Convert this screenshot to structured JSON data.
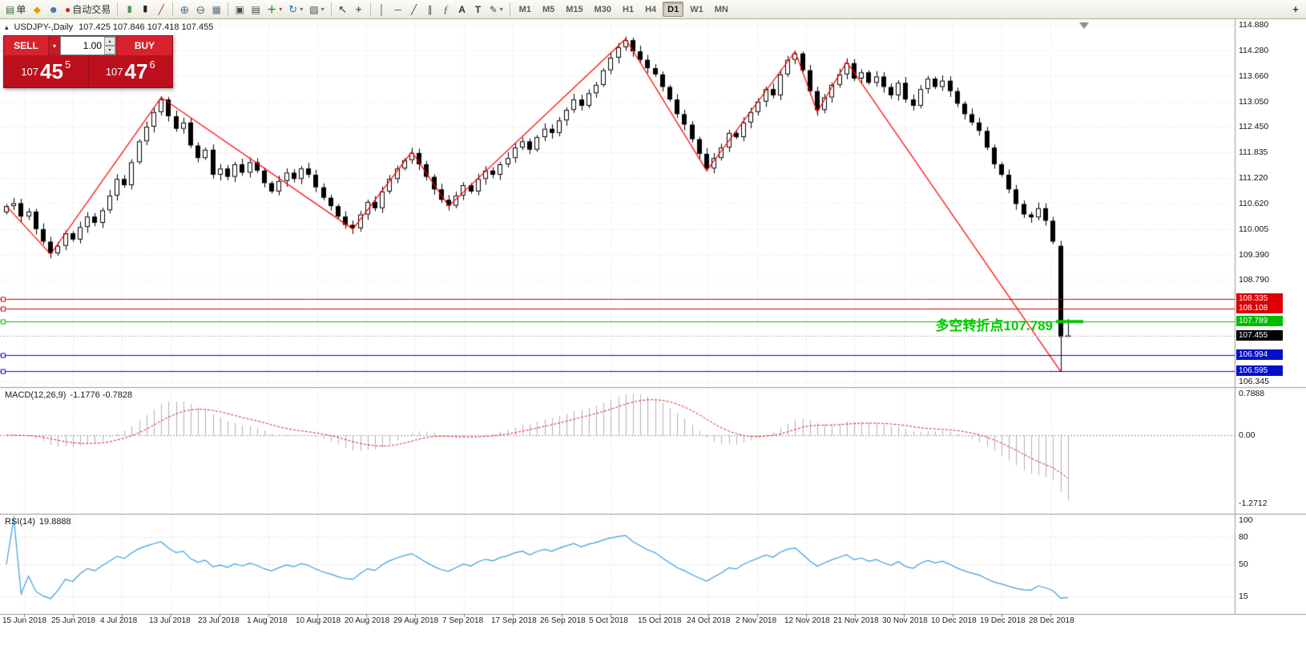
{
  "icons": {
    "order": "▤",
    "market_watch": "◆",
    "navigator": "☻",
    "autotrading_dot": "●",
    "bar_chart": "|||",
    "candle_chart": "▮",
    "line_chart": "╱",
    "zoom_in": "⊕",
    "zoom_out": "⊖",
    "tile_windows": "▦",
    "window_cascade": "▣",
    "window_arrange": "▤",
    "new_chart": "＋",
    "refresh": "↻",
    "profiles": "▧",
    "cursor": "↖",
    "crosshair": "+",
    "vertical_line": "│",
    "horizontal_line": "─",
    "trendline": "╱",
    "channel": "∥",
    "fibonacci": "ƒ",
    "text": "A",
    "text_label": "T",
    "arrows": "✎",
    "dropdown": "▾",
    "collapse": "▴",
    "spin_up": "▴",
    "spin_down": "▾",
    "overflow": "+"
  },
  "toolbar": {
    "groups": [
      {
        "items": [
          {
            "name": "new-order",
            "icon": "order",
            "label": "单",
            "color": "#3f6f3f"
          },
          {
            "name": "market-watch",
            "icon": "market_watch",
            "color": "#d9a400"
          },
          {
            "name": "navigator",
            "icon": "navigator",
            "color": "#3a6ea5"
          },
          {
            "name": "autotrading",
            "icon": "autotrading_dot",
            "label": "自动交易",
            "color": "#d42020"
          }
        ]
      },
      {
        "items": [
          {
            "name": "bar-chart",
            "icon": "bar_chart"
          },
          {
            "name": "candlestick-chart",
            "icon": "candle_chart"
          },
          {
            "name": "line-chart",
            "icon": "line_chart"
          }
        ]
      },
      {
        "items": [
          {
            "name": "zoom-in",
            "icon": "zoom_in"
          },
          {
            "name": "zoom-out",
            "icon": "zoom_out"
          },
          {
            "name": "tile-windows",
            "icon": "tile_windows"
          }
        ]
      },
      {
        "items": [
          {
            "name": "cascade-windows",
            "icon": "window_cascade"
          },
          {
            "name": "arrange-windows",
            "icon": "window_arrange"
          },
          {
            "name": "new-chart",
            "icon": "new_chart",
            "color": "#1a9a1a",
            "dropdown": true
          },
          {
            "name": "refresh-chart",
            "icon": "refresh",
            "color": "#2a6fc0",
            "dropdown": true
          },
          {
            "name": "profiles",
            "icon": "profiles",
            "dropdown": true
          }
        ]
      },
      {
        "items": [
          {
            "name": "cursor",
            "icon": "cursor"
          },
          {
            "name": "crosshair",
            "icon": "crosshair"
          }
        ]
      },
      {
        "items": [
          {
            "name": "vertical-line",
            "icon": "vertical_line"
          },
          {
            "name": "horizontal-line",
            "icon": "horizontal_line"
          },
          {
            "name": "trendline",
            "icon": "trendline"
          },
          {
            "name": "equidistant-channel",
            "icon": "channel"
          },
          {
            "name": "fibonacci",
            "icon": "fibonacci"
          },
          {
            "name": "text",
            "icon": "text"
          },
          {
            "name": "text-label",
            "icon": "text_label"
          },
          {
            "name": "arrows",
            "icon": "arrows",
            "dropdown": true
          }
        ]
      },
      {
        "items": "timeframes"
      }
    ],
    "timeframes": [
      "M1",
      "M5",
      "M15",
      "M30",
      "H1",
      "H4",
      "D1",
      "W1",
      "MN"
    ],
    "active_timeframe": "D1"
  },
  "symbol_header": {
    "title": "USDJPY-,Daily",
    "ohlc": "107.425 107.846 107.418 107.455"
  },
  "trade_panel": {
    "sell_label": "SELL",
    "buy_label": "BUY",
    "volume": "1.00",
    "sell_price": {
      "prefix": "107",
      "main": "45",
      "sup": "5"
    },
    "buy_price": {
      "prefix": "107",
      "main": "47",
      "sup": "6"
    }
  },
  "annotation": {
    "text": "多空转折点107.789",
    "value": 107.789
  },
  "levels": [
    {
      "label": "108.335",
      "value": 108.335,
      "color": "#dd0000",
      "type": "line"
    },
    {
      "label": "108.108",
      "value": 108.108,
      "color": "#dd0000",
      "type": "line"
    },
    {
      "label": "107.789",
      "value": 107.789,
      "color": "#00bb00",
      "type": "line"
    },
    {
      "label": "107.455",
      "value": 107.455,
      "color": "#000000",
      "type": "bid"
    },
    {
      "label": "106.994",
      "value": 106.994,
      "color": "#0010c8",
      "type": "line"
    },
    {
      "label": "106.595",
      "value": 106.595,
      "color": "#0010c8",
      "type": "line"
    }
  ],
  "price_axis": [
    "114.880",
    "114.280",
    "113.660",
    "113.050",
    "112.450",
    "111.835",
    "111.220",
    "110.620",
    "110.005",
    "109.390",
    "108.790",
    "106.345"
  ],
  "macd": {
    "label": "MACD(12,26,9)",
    "values": "-1.1776 -0.7828",
    "axis_labels": [
      "0.7888",
      "0.00",
      "-1.2712"
    ]
  },
  "rsi": {
    "label": "RSI(14)",
    "value": "19.8888",
    "axis_labels": [
      "100",
      "80",
      "50",
      "15"
    ]
  },
  "date_axis": [
    "15 Jun 2018",
    "25 Jun 2018",
    "4 Jul 2018",
    "13 Jul 2018",
    "23 Jul 2018",
    "1 Aug 2018",
    "10 Aug 2018",
    "20 Aug 2018",
    "29 Aug 2018",
    "7 Sep 2018",
    "17 Sep 2018",
    "26 Sep 2018",
    "5 Oct 2018",
    "15 Oct 2018",
    "24 Oct 2018",
    "2 Nov 2018",
    "12 Nov 2018",
    "21 Nov 2018",
    "30 Nov 2018",
    "10 Dec 2018",
    "19 Dec 2018",
    "28 Dec 2018"
  ],
  "chart_data": {
    "type": "candlestick",
    "symbol": "USDJPY",
    "timeframe": "Daily",
    "current_bar": {
      "open": 107.425,
      "high": 107.846,
      "low": 107.418,
      "close": 107.455
    },
    "price_range_visible": [
      106.22,
      115.02
    ],
    "first_open": 110.4,
    "closes": [
      110.55,
      110.62,
      110.3,
      110.42,
      110.0,
      109.7,
      109.42,
      109.6,
      109.9,
      109.75,
      110.05,
      110.3,
      110.15,
      110.45,
      110.8,
      111.2,
      111.05,
      111.6,
      112.1,
      112.45,
      112.8,
      113.1,
      112.7,
      112.4,
      112.55,
      112.0,
      111.7,
      111.9,
      111.3,
      111.45,
      111.25,
      111.55,
      111.35,
      111.6,
      111.4,
      111.1,
      110.9,
      111.15,
      111.35,
      111.2,
      111.45,
      111.3,
      111.0,
      110.75,
      110.55,
      110.3,
      110.1,
      110.02,
      110.35,
      110.65,
      110.5,
      110.9,
      111.2,
      111.45,
      111.65,
      111.82,
      111.55,
      111.25,
      110.95,
      110.7,
      110.56,
      110.8,
      111.05,
      110.9,
      111.2,
      111.4,
      111.3,
      111.55,
      111.7,
      111.95,
      112.1,
      111.9,
      112.2,
      112.4,
      112.3,
      112.6,
      112.85,
      113.1,
      112.95,
      113.25,
      113.45,
      113.8,
      114.1,
      114.35,
      114.52,
      114.25,
      114.05,
      113.85,
      113.7,
      113.4,
      113.1,
      112.75,
      112.5,
      112.15,
      111.8,
      111.45,
      111.7,
      111.95,
      112.3,
      112.2,
      112.55,
      112.8,
      113.05,
      113.35,
      113.2,
      113.7,
      114.05,
      114.2,
      113.8,
      113.3,
      112.85,
      113.15,
      113.45,
      113.7,
      113.97,
      113.6,
      113.75,
      113.5,
      113.65,
      113.4,
      113.2,
      113.5,
      113.1,
      112.95,
      113.35,
      113.6,
      113.4,
      113.55,
      113.3,
      113.0,
      112.75,
      112.55,
      112.35,
      111.95,
      111.55,
      111.3,
      110.95,
      110.6,
      110.35,
      110.28,
      110.5,
      110.2,
      109.7,
      107.42,
      107.455
    ],
    "special_bars": {
      "143": [
        109.6,
        109.72,
        106.6,
        107.42
      ],
      "144": [
        107.425,
        107.846,
        107.418,
        107.455
      ]
    },
    "zigzag_pivots": [
      [
        0,
        110.55
      ],
      [
        6,
        109.4
      ],
      [
        21,
        113.15
      ],
      [
        47,
        110.0
      ],
      [
        55,
        111.85
      ],
      [
        60,
        110.55
      ],
      [
        84,
        114.55
      ],
      [
        95,
        111.4
      ],
      [
        107,
        114.25
      ],
      [
        110,
        112.8
      ],
      [
        114,
        114.0
      ],
      [
        143,
        106.6
      ]
    ],
    "horizontal_levels": [
      108.335,
      108.108,
      107.789,
      106.994,
      106.595
    ],
    "indicators": {
      "macd": {
        "params": [
          12,
          26,
          9
        ],
        "current": [
          -1.1776,
          -0.7828
        ],
        "range": [
          -1.2712,
          0.7888
        ]
      },
      "rsi": {
        "params": [
          14
        ],
        "current": 19.8888,
        "levels": [
          80,
          50,
          15
        ]
      }
    },
    "colors": {
      "bull": "#ffffff",
      "bear": "#000000",
      "zigzag": "#ff0000",
      "macd_hist": "#b2b2b2",
      "macd_signal": "#e02020",
      "rsi_line": "#3b9fdf"
    }
  }
}
